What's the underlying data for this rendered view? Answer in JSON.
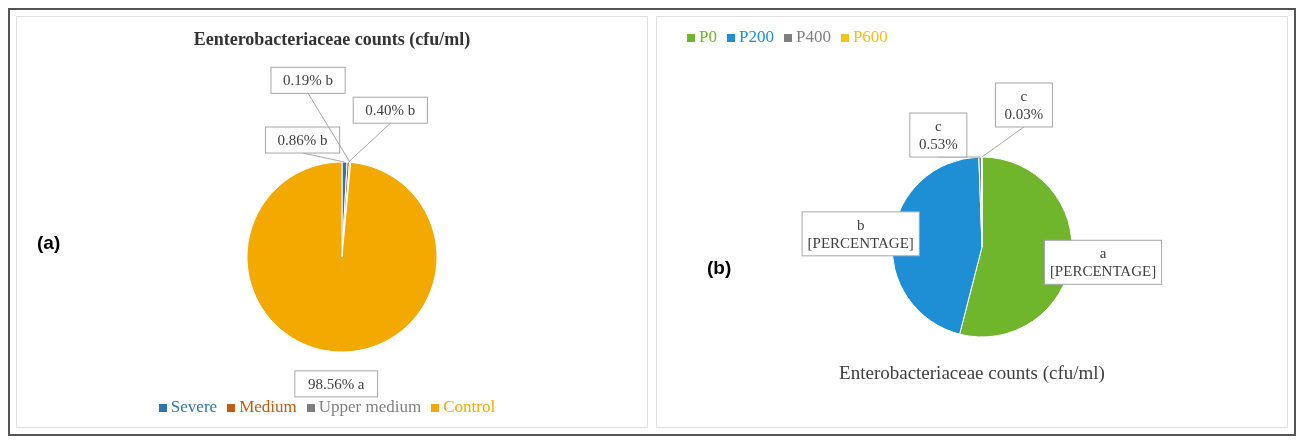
{
  "chart_data": [
    {
      "type": "pie",
      "title": "Eenterobacteriaceae counts (cfu/ml)",
      "categories": [
        "Severe",
        "Medium",
        "Upper medium",
        "Control"
      ],
      "values": [
        0.86,
        0.4,
        0.19,
        98.56
      ],
      "colors": [
        "#2e75b6",
        "#c55a11",
        "#7f7f7f",
        "#f4a900"
      ],
      "value_labels": [
        "0.86% b",
        "0.40% b",
        "0.19% b",
        "98.56% a"
      ],
      "legend": "bottom",
      "annotations": [
        "(a)"
      ]
    },
    {
      "type": "pie",
      "title": "Enterobacteriaceae counts (cfu/ml)",
      "categories": [
        "P0",
        "P200",
        "P400",
        "P600"
      ],
      "values": [
        54,
        45.44,
        0.53,
        0.03
      ],
      "colors": [
        "#70b62c",
        "#1e8fd5",
        "#7f7f7f",
        "#f0c419"
      ],
      "value_labels": [
        "a [PERCENTAGE]",
        "b [PERCENTAGE]",
        "c 0.53%",
        "c 0.03%"
      ],
      "legend": "top left",
      "annotations": [
        "(b)"
      ]
    }
  ]
}
